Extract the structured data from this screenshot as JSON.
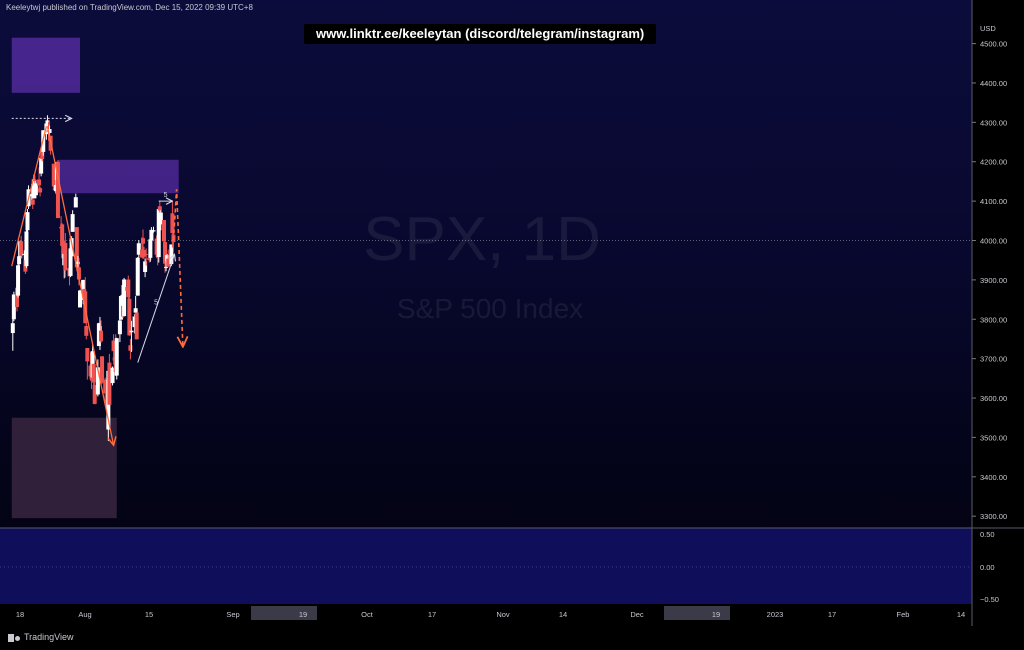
{
  "publisher_line": "Keeleytwj published on TradingView.com, Dec 15, 2022 09:39 UTC+8",
  "banner": "www.linktr.ee/keeleytan (discord/telegram/instagram)",
  "watermark": {
    "symbol": "SPX, 1D",
    "name": "S&P 500 Index"
  },
  "footer_brand": "TradingView",
  "colors": {
    "bull": "#ffffff",
    "bear": "#ef5350",
    "zone_top": "#5b2fa8",
    "zone_bottom": "#3a2640",
    "trend": "#ff6b3d",
    "wedge": "#d8d8e8"
  },
  "chart_data": {
    "type": "candlestick",
    "price_axis": {
      "unit": "USD",
      "ticks": [
        "4500.00",
        "4400.00",
        "4300.00",
        "4200.00",
        "4100.00",
        "4000.00",
        "3900.00",
        "3800.00",
        "3700.00",
        "3600.00",
        "3500.00",
        "3400.00",
        "3300.00"
      ],
      "range": [
        3270,
        4565
      ]
    },
    "indicator_axis": {
      "ticks": [
        "0.50",
        "0.00",
        "−0.50"
      ]
    },
    "time_axis": {
      "labels": [
        "18",
        "Aug",
        "15",
        "Sep",
        "19",
        "Oct",
        "17",
        "Nov",
        "14",
        "Dec",
        "19",
        "2023",
        "17",
        "Feb",
        "14"
      ],
      "highlighted": "19"
    },
    "zones": [
      {
        "name": "upper-supply-zone",
        "from": 4375,
        "to": 4515,
        "start": "2022-07-13",
        "end": "2022-09-16"
      },
      {
        "name": "mid-supply-zone",
        "from": 4120,
        "to": 4205,
        "start": "2022-08-26",
        "end": "2022-12-19"
      },
      {
        "name": "demand-zone",
        "from": 3295,
        "to": 3550,
        "start": "2022-07-13",
        "end": "2022-10-21"
      }
    ],
    "annotations": [
      {
        "name": "peak-ray",
        "type": "ray",
        "price": 4310,
        "from": "2022-07-13",
        "to": "2022-09-08"
      },
      {
        "name": "uptrend-line",
        "type": "line",
        "from": [
          "2022-07-13",
          3935
        ],
        "to": [
          "2022-08-15",
          4290
        ]
      },
      {
        "name": "downtrend-arrow",
        "type": "arrow",
        "from": [
          "2022-08-16",
          4290
        ],
        "to": [
          "2022-10-18",
          3480
        ]
      },
      {
        "name": "wedge-support",
        "type": "arrow",
        "from": [
          "2022-11-10",
          3690
        ],
        "to": [
          "2022-12-15",
          3965
        ],
        "label": "5"
      },
      {
        "name": "wedge-top-ray",
        "type": "arrow",
        "from": [
          "2022-11-30",
          4100
        ],
        "to": [
          "2022-12-13",
          4100
        ],
        "label": "5"
      },
      {
        "name": "projection",
        "type": "dashed-arrow",
        "points": [
          [
            "2022-12-14",
            4000
          ],
          [
            "2022-12-17",
            4130
          ],
          [
            "2022-12-23",
            3730
          ]
        ]
      }
    ],
    "candles": [
      [
        "2022-07-14",
        3765,
        3800,
        3720,
        3790
      ],
      [
        "2022-07-15",
        3800,
        3870,
        3795,
        3863
      ],
      [
        "2022-07-18",
        3880,
        3900,
        3820,
        3831
      ],
      [
        "2022-07-19",
        3860,
        3940,
        3855,
        3937
      ],
      [
        "2022-07-20",
        3940,
        3975,
        3930,
        3960
      ],
      [
        "2022-07-21",
        3955,
        4000,
        3945,
        3998
      ],
      [
        "2022-07-22",
        3998,
        4012,
        3955,
        3961
      ],
      [
        "2022-07-25",
        3965,
        3975,
        3940,
        3966
      ],
      [
        "2022-07-26",
        3950,
        3955,
        3915,
        3921
      ],
      [
        "2022-07-27",
        3935,
        4040,
        3930,
        4023
      ],
      [
        "2022-07-28",
        4026,
        4080,
        4000,
        4072
      ],
      [
        "2022-07-29",
        4087,
        4140,
        4080,
        4130
      ],
      [
        "2022-08-01",
        4112,
        4144,
        4095,
        4118
      ],
      [
        "2022-08-02",
        4104,
        4140,
        4080,
        4091
      ],
      [
        "2022-08-03",
        4107,
        4167,
        4107,
        4155
      ],
      [
        "2022-08-04",
        4154,
        4165,
        4127,
        4151
      ],
      [
        "2022-08-05",
        4115,
        4151,
        4107,
        4145
      ],
      [
        "2022-08-08",
        4155,
        4186,
        4128,
        4140
      ],
      [
        "2022-08-09",
        4133,
        4137,
        4112,
        4122
      ],
      [
        "2022-08-10",
        4170,
        4211,
        4163,
        4210
      ],
      [
        "2022-08-11",
        4227,
        4257,
        4201,
        4207
      ],
      [
        "2022-08-12",
        4225,
        4280,
        4215,
        4280
      ],
      [
        "2022-08-15",
        4270,
        4301,
        4256,
        4297
      ],
      [
        "2022-08-16",
        4290,
        4318,
        4278,
        4305
      ],
      [
        "2022-08-17",
        4280,
        4302,
        4253,
        4275
      ],
      [
        "2022-08-18",
        4273,
        4292,
        4261,
        4283
      ],
      [
        "2022-08-19",
        4266,
        4266,
        4218,
        4228
      ],
      [
        "2022-08-22",
        4195,
        4195,
        4131,
        4137
      ],
      [
        "2022-08-23",
        4134,
        4149,
        4124,
        4128
      ],
      [
        "2022-08-24",
        4126,
        4156,
        4119,
        4141
      ],
      [
        "2022-08-25",
        4154,
        4200,
        4147,
        4199
      ],
      [
        "2022-08-26",
        4199,
        4204,
        4057,
        4057
      ],
      [
        "2022-08-29",
        4034,
        4062,
        4017,
        4031
      ],
      [
        "2022-08-30",
        4041,
        4044,
        3965,
        3986
      ],
      [
        "2022-08-31",
        4000,
        4016,
        3954,
        3955
      ],
      [
        "2022-09-01",
        3937,
        3970,
        3904,
        3966
      ],
      [
        "2022-09-02",
        3994,
        4019,
        3906,
        3924
      ],
      [
        "2022-09-06",
        3930,
        3942,
        3886,
        3909
      ],
      [
        "2022-09-07",
        3910,
        3987,
        3907,
        3980
      ],
      [
        "2022-09-08",
        3960,
        4011,
        3944,
        4006
      ],
      [
        "2022-09-09",
        4022,
        4077,
        4022,
        4067
      ],
      [
        "2022-09-12",
        4084,
        4119,
        4084,
        4110
      ],
      [
        "2022-09-13",
        4034,
        4034,
        3922,
        3932
      ],
      [
        "2022-09-14",
        3940,
        3961,
        3912,
        3946
      ],
      [
        "2022-09-15",
        3932,
        3956,
        3886,
        3901
      ],
      [
        "2022-09-16",
        3830,
        3875,
        3838,
        3873
      ],
      [
        "2022-09-19",
        3849,
        3900,
        3838,
        3900
      ],
      [
        "2022-09-20",
        3877,
        3877,
        3839,
        3855
      ],
      [
        "2022-09-21",
        3871,
        3907,
        3790,
        3790
      ],
      [
        "2022-09-22",
        3783,
        3800,
        3749,
        3758
      ],
      [
        "2022-09-23",
        3727,
        3727,
        3647,
        3693
      ],
      [
        "2022-09-26",
        3682,
        3716,
        3644,
        3655
      ],
      [
        "2022-09-27",
        3686,
        3717,
        3623,
        3647
      ],
      [
        "2022-09-28",
        3652,
        3736,
        3640,
        3719
      ],
      [
        "2022-09-29",
        3687,
        3687,
        3610,
        3640
      ],
      [
        "2022-09-30",
        3633,
        3671,
        3584,
        3585
      ],
      [
        "2022-10-03",
        3609,
        3698,
        3604,
        3678
      ],
      [
        "2022-10-04",
        3732,
        3791,
        3732,
        3790
      ],
      [
        "2022-10-05",
        3753,
        3806,
        3722,
        3783
      ],
      [
        "2022-10-06",
        3771,
        3797,
        3740,
        3744
      ],
      [
        "2022-10-07",
        3706,
        3706,
        3636,
        3639
      ],
      [
        "2022-10-10",
        3647,
        3652,
        3588,
        3612
      ],
      [
        "2022-10-11",
        3596,
        3640,
        3569,
        3588
      ],
      [
        "2022-10-12",
        3590,
        3608,
        3573,
        3577
      ],
      [
        "2022-10-13",
        3520,
        3685,
        3491,
        3669
      ],
      [
        "2022-10-14",
        3690,
        3712,
        3585,
        3583
      ],
      [
        "2022-10-17",
        3638,
        3680,
        3632,
        3677
      ],
      [
        "2022-10-18",
        3746,
        3762,
        3686,
        3719
      ],
      [
        "2022-10-19",
        3703,
        3728,
        3666,
        3695
      ],
      [
        "2022-10-20",
        3689,
        3762,
        3656,
        3666
      ],
      [
        "2022-10-21",
        3657,
        3753,
        3647,
        3752
      ],
      [
        "2022-10-24",
        3762,
        3810,
        3742,
        3797
      ],
      [
        "2022-10-25",
        3799,
        3862,
        3799,
        3859
      ],
      [
        "2022-10-26",
        3825,
        3887,
        3824,
        3830
      ],
      [
        "2022-10-27",
        3834,
        3859,
        3803,
        3807
      ],
      [
        "2022-10-28",
        3808,
        3905,
        3808,
        3901
      ],
      [
        "2022-10-31",
        3882,
        3882,
        3863,
        3872
      ],
      [
        "2022-11-01",
        3901,
        3911,
        3843,
        3856
      ],
      [
        "2022-11-02",
        3852,
        3894,
        3758,
        3759
      ],
      [
        "2022-11-03",
        3734,
        3750,
        3698,
        3720
      ],
      [
        "2022-11-04",
        3767,
        3796,
        3717,
        3771
      ],
      [
        "2022-11-07",
        3780,
        3813,
        3764,
        3807
      ],
      [
        "2022-11-08",
        3817,
        3859,
        3785,
        3828
      ],
      [
        "2022-11-09",
        3817,
        3817,
        3749,
        3749
      ],
      [
        "2022-11-10",
        3860,
        3958,
        3860,
        3956
      ],
      [
        "2022-11-11",
        3964,
        4001,
        3944,
        3993
      ],
      [
        "2022-11-14",
        3977,
        4008,
        3956,
        3957
      ],
      [
        "2022-11-15",
        4006,
        4028,
        3953,
        3992
      ],
      [
        "2022-11-16",
        3976,
        3984,
        3954,
        3959
      ],
      [
        "2022-11-17",
        3920,
        3954,
        3907,
        3947
      ],
      [
        "2022-11-18",
        3966,
        3980,
        3936,
        3965
      ],
      [
        "2022-11-21",
        3956,
        3962,
        3944,
        3950
      ],
      [
        "2022-11-22",
        3956,
        4003,
        3946,
        4003
      ],
      [
        "2022-11-23",
        4000,
        4034,
        3998,
        4027
      ],
      [
        "2022-11-25",
        4023,
        4035,
        4020,
        4026
      ],
      [
        "2022-11-28",
        4005,
        4013,
        3955,
        3964
      ],
      [
        "2022-11-29",
        3964,
        3976,
        3937,
        3958
      ],
      [
        "2022-11-30",
        3958,
        4080,
        3944,
        4080
      ],
      [
        "2022-12-01",
        4087,
        4101,
        4064,
        4076
      ],
      [
        "2022-12-02",
        4041,
        4077,
        4026,
        4071
      ],
      [
        "2022-12-05",
        4052,
        4052,
        3984,
        3998
      ],
      [
        "2022-12-06",
        3996,
        4001,
        3918,
        3941
      ],
      [
        "2022-12-07",
        3933,
        3957,
        3922,
        3933
      ],
      [
        "2022-12-08",
        3947,
        3966,
        3934,
        3963
      ],
      [
        "2022-12-09",
        3954,
        3977,
        3933,
        3934
      ],
      [
        "2022-12-12",
        3940,
        3990,
        3935,
        3990
      ],
      [
        "2022-12-13",
        4069,
        4101,
        3982,
        4019
      ],
      [
        "2022-12-14",
        4015,
        4060,
        3973,
        3996
      ]
    ]
  }
}
